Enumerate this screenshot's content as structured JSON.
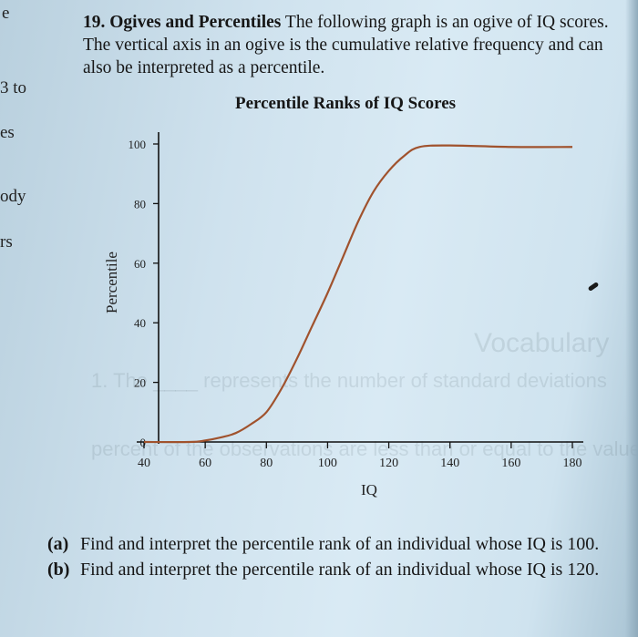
{
  "margin_fragments": [
    "e",
    "3 to",
    "es",
    "ody",
    "rs"
  ],
  "problem": {
    "number": "19.",
    "heading": "Ogives and Percentiles",
    "text": "The following graph is an ogive of IQ scores. The vertical axis in an ogive is the cumulative relative frequency and can also be interpreted as a percentile."
  },
  "chart_data": {
    "type": "line",
    "title": "Percentile Ranks of IQ Scores",
    "xlabel": "IQ",
    "ylabel": "Percentile",
    "xlim": [
      40,
      185
    ],
    "ylim": [
      0,
      100
    ],
    "xticks": [
      40,
      60,
      80,
      100,
      120,
      140,
      160,
      180
    ],
    "yticks": [
      0,
      20,
      40,
      60,
      80,
      100
    ],
    "grid": false,
    "legend": null,
    "series": [
      {
        "name": "Ogive",
        "color": "#a0522d",
        "x": [
          40,
          55,
          60,
          65,
          70,
          75,
          80,
          85,
          90,
          95,
          100,
          105,
          110,
          115,
          120,
          125,
          130,
          140,
          160,
          180
        ],
        "y": [
          0,
          0,
          0.5,
          1.5,
          3,
          6,
          10,
          18,
          28,
          39,
          50,
          62,
          74,
          84,
          91,
          96,
          99,
          99.5,
          99,
          99
        ]
      }
    ]
  },
  "questions": [
    {
      "label": "(a)",
      "text": "Find and interpret the percentile rank of an individual whose IQ is 100."
    },
    {
      "label": "(b)",
      "text": "Find and interpret the percentile rank of an individual whose IQ is 120."
    }
  ]
}
